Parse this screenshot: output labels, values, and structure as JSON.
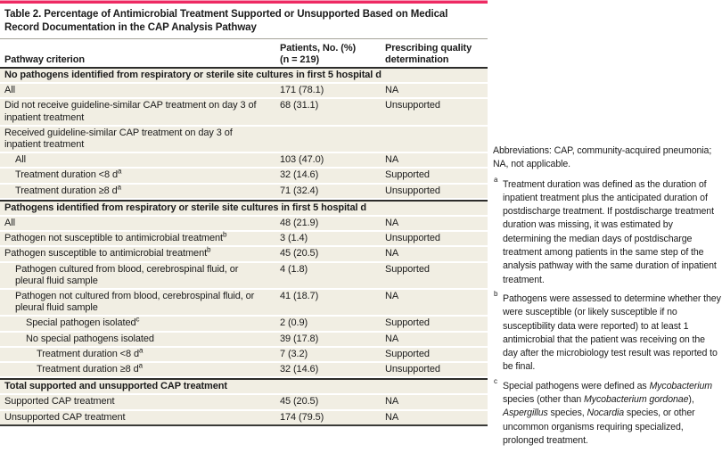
{
  "colors": {
    "accent_pink": "#ee2a63",
    "accent_pink_light": "#f79ab5",
    "row_beige": "#f1eee3",
    "rule_dark": "#2c2c2a"
  },
  "table": {
    "title": "Table 2. Percentage of Antimicrobial Treatment Supported or Unsupported Based on Medical Record Documentation in the CAP Analysis Pathway",
    "columns": {
      "criterion": "Pathway criterion",
      "patients_line1": "Patients, No. (%)",
      "patients_line2": "(n = 219)",
      "quality_line1": "Prescribing quality",
      "quality_line2": "determination"
    },
    "rows": [
      {
        "type": "section",
        "label": "No pathogens identified from respiratory or sterile site cultures in first 5 hospital d"
      },
      {
        "type": "data",
        "indent": 0,
        "label": "All",
        "patients": "171 (78.1)",
        "quality": "NA"
      },
      {
        "type": "data",
        "indent": 0,
        "label": "Did not receive guideline-similar CAP treatment on day 3 of inpatient treatment",
        "patients": "68 (31.1)",
        "quality": "Unsupported"
      },
      {
        "type": "data",
        "indent": 0,
        "label": "Received guideline-similar CAP treatment on day 3 of inpatient treatment",
        "patients": "",
        "quality": ""
      },
      {
        "type": "data",
        "indent": 1,
        "label": "All",
        "patients": "103 (47.0)",
        "quality": "NA"
      },
      {
        "type": "data",
        "indent": 1,
        "label": "Treatment duration <8 d",
        "sup": "a",
        "patients": "32 (14.6)",
        "quality": "Supported"
      },
      {
        "type": "data",
        "indent": 1,
        "label": "Treatment duration ≥8 d",
        "sup": "a",
        "patients": "71 (32.4)",
        "quality": "Unsupported"
      },
      {
        "type": "section",
        "divider": true,
        "label": "Pathogens identified from respiratory or sterile site cultures in first 5 hospital d"
      },
      {
        "type": "data",
        "indent": 0,
        "label": "All",
        "patients": "48 (21.9)",
        "quality": "NA"
      },
      {
        "type": "data",
        "indent": 0,
        "label": "Pathogen not susceptible to antimicrobial treatment",
        "sup": "b",
        "patients": "3 (1.4)",
        "quality": "Unsupported"
      },
      {
        "type": "data",
        "indent": 0,
        "label": "Pathogen susceptible to antimicrobial treatment",
        "sup": "b",
        "patients": "45 (20.5)",
        "quality": "NA"
      },
      {
        "type": "data",
        "indent": 1,
        "label": "Pathogen cultured from blood, cerebrospinal fluid, or pleural fluid sample",
        "patients": "4 (1.8)",
        "quality": "Supported"
      },
      {
        "type": "data",
        "indent": 1,
        "label": "Pathogen not cultured from blood, cerebrospinal fluid, or pleural fluid sample",
        "patients": "41 (18.7)",
        "quality": "NA"
      },
      {
        "type": "data",
        "indent": 2,
        "label": "Special pathogen isolated",
        "sup": "c",
        "patients": "2 (0.9)",
        "quality": "Supported"
      },
      {
        "type": "data",
        "indent": 2,
        "label": "No special pathogens isolated",
        "patients": "39 (17.8)",
        "quality": "NA"
      },
      {
        "type": "data",
        "indent": 3,
        "label": "Treatment duration <8 d",
        "sup": "a",
        "patients": "7 (3.2)",
        "quality": "Supported"
      },
      {
        "type": "data",
        "indent": 3,
        "label": "Treatment duration ≥8 d",
        "sup": "a",
        "patients": "32 (14.6)",
        "quality": "Unsupported"
      },
      {
        "type": "section",
        "divider": true,
        "label": "Total supported and unsupported CAP treatment"
      },
      {
        "type": "data",
        "indent": 0,
        "label": "Supported CAP treatment",
        "patients": "45 (20.5)",
        "quality": "NA"
      },
      {
        "type": "data",
        "indent": 0,
        "label": "Unsupported CAP treatment",
        "patients": "174 (79.5)",
        "quality": "NA"
      }
    ]
  },
  "notes": {
    "abbreviations": "Abbreviations: CAP, community-acquired pneumonia; NA, not applicable.",
    "footnotes": [
      {
        "marker": "a",
        "segments": [
          {
            "text": "Treatment duration was defined as the duration of inpatient treatment plus the anticipated duration of postdischarge treatment. If postdischarge treatment duration was missing, it was estimated by determining the median days of postdischarge treatment among patients in the same step of the analysis pathway with the same duration of inpatient treatment."
          }
        ]
      },
      {
        "marker": "b",
        "segments": [
          {
            "text": "Pathogens were assessed to determine whether they were susceptible (or likely susceptible if no susceptibility data were reported) to at least 1 antimicrobial that the patient was receiving on the day after the microbiology test result was reported to be final."
          }
        ]
      },
      {
        "marker": "c",
        "segments": [
          {
            "text": "Special pathogens were defined as "
          },
          {
            "text": "Mycobacterium",
            "italic": true
          },
          {
            "text": " species (other than "
          },
          {
            "text": "Mycobacterium gordonae",
            "italic": true
          },
          {
            "text": "), "
          },
          {
            "text": "Aspergillus",
            "italic": true
          },
          {
            "text": " species, "
          },
          {
            "text": "Nocardia",
            "italic": true
          },
          {
            "text": " species, or other uncommon organisms requiring specialized, prolonged treatment."
          }
        ]
      }
    ]
  }
}
